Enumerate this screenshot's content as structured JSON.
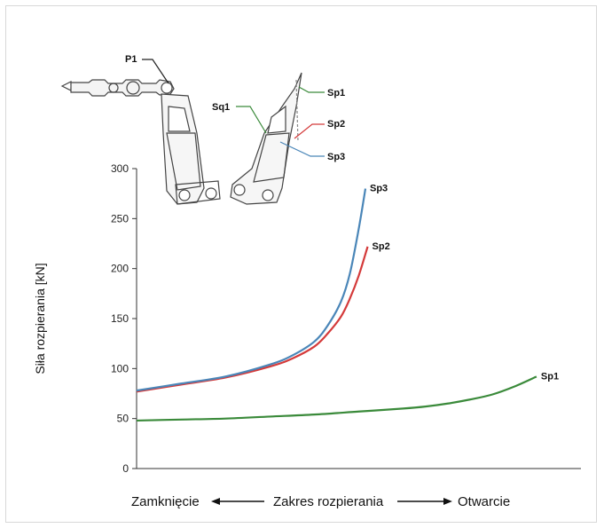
{
  "chart_data": {
    "type": "line",
    "ylabel": "Siła rozpierania [kN]",
    "ylim": [
      0,
      300
    ],
    "yticks": [
      "0",
      "50",
      "100",
      "150",
      "200",
      "250",
      "300"
    ],
    "grid": false,
    "x_axis_labels": {
      "closing": "Zamknięcie",
      "range": "Zakres rozpierania",
      "opening": "Otwarcie"
    },
    "x_values": "relative position along spreading range (0 = closed, 1 = open)",
    "series": [
      {
        "name": "Sp1",
        "color": "#3a8a3a",
        "x": [
          0.0,
          0.1,
          0.2,
          0.3,
          0.4,
          0.5,
          0.6,
          0.65,
          0.7,
          0.75,
          0.8,
          0.85,
          0.9
        ],
        "y": [
          48,
          49,
          50,
          52,
          54,
          57,
          60,
          62,
          65,
          69,
          74,
          82,
          92
        ]
      },
      {
        "name": "Sp2",
        "color": "#d43a3a",
        "x": [
          0.0,
          0.1,
          0.2,
          0.3,
          0.35,
          0.4,
          0.43,
          0.46,
          0.48,
          0.5,
          0.52
        ],
        "y": [
          77,
          84,
          91,
          102,
          110,
          122,
          135,
          152,
          170,
          193,
          222
        ]
      },
      {
        "name": "Sp3",
        "color": "#4a86b8",
        "x": [
          0.0,
          0.1,
          0.2,
          0.3,
          0.35,
          0.4,
          0.43,
          0.46,
          0.48,
          0.5,
          0.515
        ],
        "y": [
          78,
          85,
          92,
          104,
          113,
          127,
          143,
          167,
          195,
          240,
          280
        ]
      }
    ]
  },
  "diagram": {
    "labels": {
      "p1": "P1",
      "sq1": "Sq1",
      "sp1": "Sp1",
      "sp2": "Sp2",
      "sp3": "Sp3"
    }
  }
}
